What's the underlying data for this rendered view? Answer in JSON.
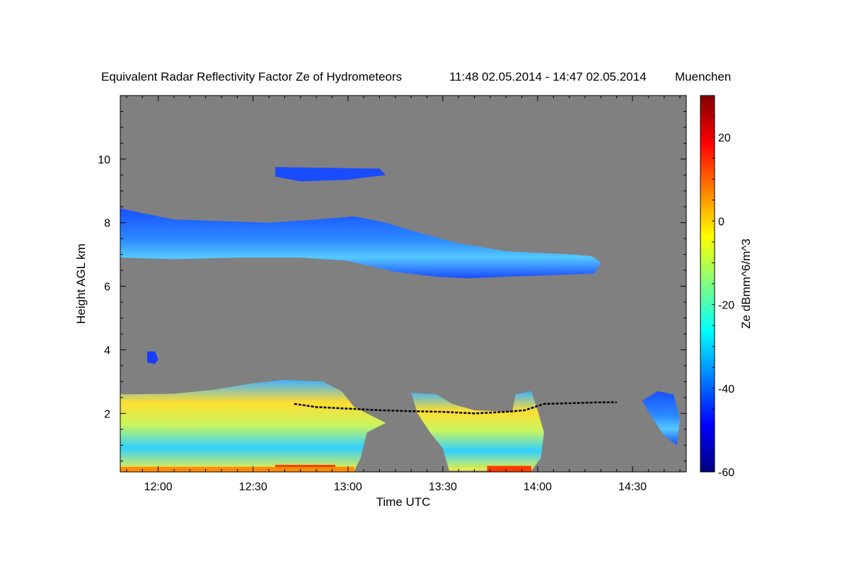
{
  "chart_data": {
    "type": "heatmap",
    "title": "Equivalent Radar Reflectivity Factor Ze of Hydrometeors",
    "time_range_label": "11:48 02.05.2014 - 14:47 02.05.2014",
    "location": "Muenchen",
    "xlabel": "Time UTC",
    "ylabel": "Height AGL km",
    "colorbar_label": "Ze dBmm^6/m^3",
    "x_unit": "minutes after 12:00 UTC",
    "xlim": [
      -12,
      167
    ],
    "ylim": [
      0.16,
      12
    ],
    "x_ticks": [
      {
        "value": 0,
        "label": "12:00"
      },
      {
        "value": 30,
        "label": "12:30"
      },
      {
        "value": 60,
        "label": "13:00"
      },
      {
        "value": 90,
        "label": "13:30"
      },
      {
        "value": 120,
        "label": "14:00"
      },
      {
        "value": 150,
        "label": "14:30"
      }
    ],
    "y_ticks": [
      {
        "value": 2,
        "label": "2"
      },
      {
        "value": 4,
        "label": "4"
      },
      {
        "value": 6,
        "label": "6"
      },
      {
        "value": 8,
        "label": "8"
      },
      {
        "value": 10,
        "label": "10"
      }
    ],
    "colorbar": {
      "range": [
        -60,
        30
      ],
      "ticks": [
        {
          "value": 20,
          "label": "20"
        },
        {
          "value": 0,
          "label": "0"
        },
        {
          "value": -20,
          "label": "-20"
        },
        {
          "value": -40,
          "label": "-40"
        },
        {
          "value": -60,
          "label": "-60"
        }
      ],
      "colormap": [
        "#00007f",
        "#0000ff",
        "#007fff",
        "#00ffff",
        "#7fff7f",
        "#ffff00",
        "#ff7f00",
        "#ff0000",
        "#7f0000"
      ]
    },
    "background_color": "#808080",
    "features": [
      {
        "name": "upper-cloud-layer",
        "ze_dbz": -40,
        "fill": "url(#gUpper)",
        "outline": [
          [
            -12,
            8.45
          ],
          [
            -5,
            8.3
          ],
          [
            5,
            8.1
          ],
          [
            20,
            8.05
          ],
          [
            35,
            8.0
          ],
          [
            50,
            8.1
          ],
          [
            62,
            8.2
          ],
          [
            72,
            8.0
          ],
          [
            82,
            7.7
          ],
          [
            95,
            7.35
          ],
          [
            110,
            7.1
          ],
          [
            120,
            7.05
          ],
          [
            131,
            7.0
          ],
          [
            137,
            6.95
          ],
          [
            140,
            6.75
          ],
          [
            138,
            6.4
          ],
          [
            125,
            6.35
          ],
          [
            110,
            6.3
          ],
          [
            98,
            6.25
          ],
          [
            88,
            6.3
          ],
          [
            75,
            6.45
          ],
          [
            60,
            6.8
          ],
          [
            45,
            6.9
          ],
          [
            25,
            6.9
          ],
          [
            5,
            6.85
          ],
          [
            -12,
            6.9
          ]
        ]
      },
      {
        "name": "cirrus-patches",
        "ze_dbz": -45,
        "fill": "#1a4cff",
        "outline": [
          [
            37,
            9.75
          ],
          [
            70,
            9.7
          ],
          [
            72,
            9.5
          ],
          [
            60,
            9.35
          ],
          [
            45,
            9.3
          ],
          [
            37,
            9.45
          ]
        ]
      },
      {
        "name": "mid-level-blob",
        "ze_dbz": -45,
        "fill": "#1a3cff",
        "outline": [
          [
            -3.5,
            3.95
          ],
          [
            -1,
            3.95
          ],
          [
            0,
            3.7
          ],
          [
            -1,
            3.55
          ],
          [
            -3.5,
            3.6
          ]
        ]
      },
      {
        "name": "precipitation-region-1",
        "ze_dbz": -10,
        "fill": "url(#gPrecip)",
        "outline": [
          [
            -12,
            2.6
          ],
          [
            5,
            2.62
          ],
          [
            18,
            2.75
          ],
          [
            30,
            2.95
          ],
          [
            40,
            3.05
          ],
          [
            52,
            3.0
          ],
          [
            58,
            2.7
          ],
          [
            62,
            2.2
          ],
          [
            66,
            2.0
          ],
          [
            72,
            1.7
          ],
          [
            66,
            1.4
          ],
          [
            64,
            0.6
          ],
          [
            62,
            0.2
          ],
          [
            -12,
            0.2
          ]
        ]
      },
      {
        "name": "precipitation-region-2",
        "ze_dbz": -15,
        "fill": "url(#gPrecip)",
        "outline": [
          [
            80,
            2.65
          ],
          [
            88,
            2.6
          ],
          [
            93,
            2.3
          ],
          [
            100,
            2.1
          ],
          [
            112,
            2.05
          ],
          [
            113,
            2.6
          ],
          [
            118,
            2.7
          ],
          [
            120,
            2.1
          ],
          [
            122,
            1.4
          ],
          [
            121,
            0.6
          ],
          [
            118,
            0.2
          ],
          [
            92,
            0.2
          ],
          [
            90,
            0.9
          ],
          [
            86,
            1.4
          ],
          [
            82,
            2.0
          ]
        ]
      },
      {
        "name": "right-edge-cloud",
        "ze_dbz": -42,
        "fill": "url(#gUpper)",
        "outline": [
          [
            153,
            2.4
          ],
          [
            158,
            2.7
          ],
          [
            163,
            2.6
          ],
          [
            165,
            1.8
          ],
          [
            164,
            1.0
          ],
          [
            160,
            1.3
          ],
          [
            156,
            1.9
          ]
        ]
      },
      {
        "name": "surface-high-reflectivity-1",
        "ze_dbz": 15,
        "fill": "#ff3000",
        "outline": [
          [
            37,
            0.38
          ],
          [
            56,
            0.38
          ],
          [
            56,
            0.16
          ],
          [
            37,
            0.16
          ]
        ]
      },
      {
        "name": "surface-high-reflectivity-2",
        "ze_dbz": 15,
        "fill": "#ff3a00",
        "outline": [
          [
            104,
            0.35
          ],
          [
            118,
            0.35
          ],
          [
            118,
            0.16
          ],
          [
            104,
            0.16
          ]
        ]
      },
      {
        "name": "surface-moderate-band",
        "ze_dbz": 5,
        "fill": "#ff8c00",
        "outline": [
          [
            -12,
            0.32
          ],
          [
            62,
            0.32
          ],
          [
            62,
            0.16
          ],
          [
            -12,
            0.16
          ]
        ]
      }
    ],
    "black_line": {
      "name": "cloud-base-line",
      "points": [
        [
          43,
          2.3
        ],
        [
          50,
          2.2
        ],
        [
          60,
          2.15
        ],
        [
          70,
          2.1
        ],
        [
          80,
          2.07
        ],
        [
          90,
          2.05
        ],
        [
          100,
          2.0
        ],
        [
          110,
          2.05
        ],
        [
          116,
          2.1
        ],
        [
          122,
          2.3
        ],
        [
          130,
          2.32
        ],
        [
          140,
          2.35
        ],
        [
          145,
          2.35
        ]
      ]
    }
  }
}
